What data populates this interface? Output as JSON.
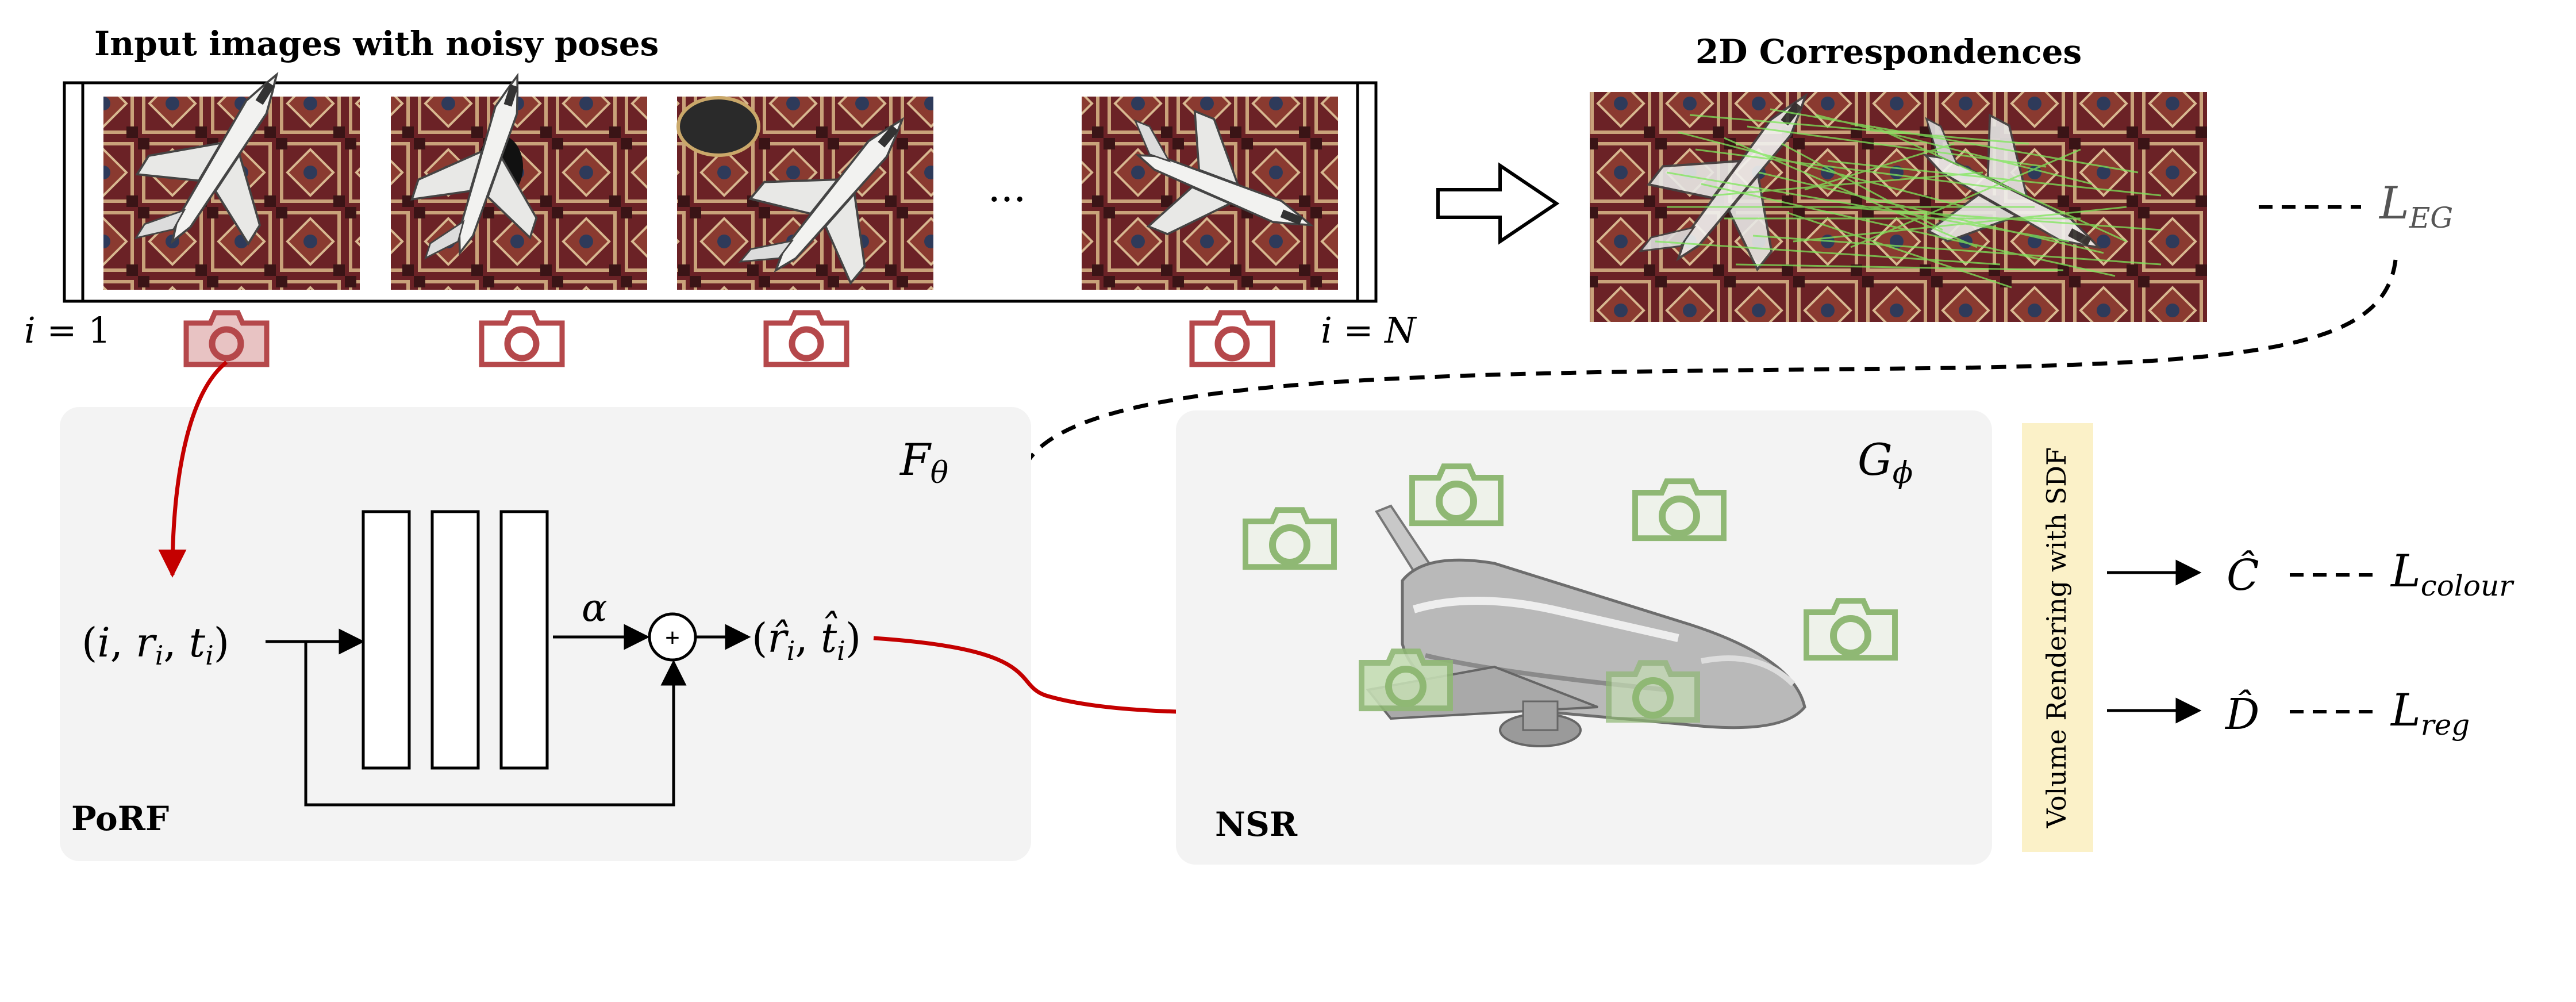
{
  "top": {
    "input_title": "Input images with noisy poses",
    "correspondences_title": "2D Correspondences",
    "ellipsis": "...",
    "index_first": {
      "var": "i",
      "eq": " = ",
      "val": "1"
    },
    "index_last": {
      "var": "i",
      "eq": " = ",
      "val": "N"
    },
    "loss_eg": {
      "base": "L",
      "sub": "EG"
    }
  },
  "porf": {
    "label": "PoRF",
    "func": {
      "base": "F",
      "sub": "θ"
    },
    "input": {
      "open": "(",
      "i": "i",
      "c1": ", ",
      "r": "r",
      "ri": "i",
      "c2": ", ",
      "t": "t",
      "ti": "i",
      "close": ")"
    },
    "output": {
      "open": "(",
      "r": "r̂",
      "ri": "i",
      "c": ", ",
      "t": "t̂",
      "ti": "i",
      "close": ")"
    },
    "alpha": "α",
    "plus": "+"
  },
  "nsr": {
    "label": "NSR",
    "func": {
      "base": "G",
      "sub": "ϕ"
    }
  },
  "render": {
    "label": "Volume Rendering with SDF",
    "colour_out": "Ĉ",
    "depth_out": "D̂",
    "loss_colour": {
      "base": "L",
      "sub": "colour"
    },
    "loss_reg": {
      "base": "L",
      "sub": "reg"
    }
  },
  "colors": {
    "panel_bg": "#f3f3f3",
    "camera_red": "#b5484b",
    "camera_red_fill": "#e8c3c3",
    "camera_green": "#8fb874",
    "camera_green_fill": "#c5ddb4",
    "arrow_red": "#c40000",
    "render_bg": "#fbf1c8",
    "correspondence_green": "#7ee85a",
    "carpet_dark": "#5a1b1f",
    "carpet_mid": "#8a3a30",
    "carpet_light": "#c9a27a"
  }
}
